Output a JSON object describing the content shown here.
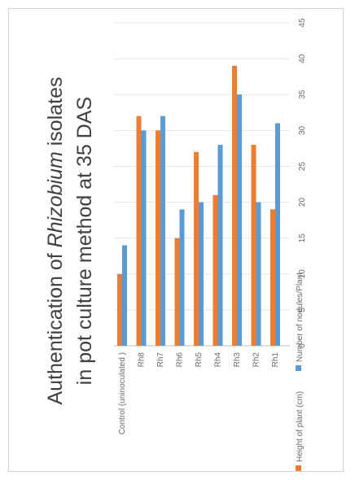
{
  "chart_data": {
    "type": "bar",
    "orientation": "horizontal",
    "rotation": "image rotated 90° counter-clockwise",
    "title": {
      "prefix": "Authentication of ",
      "italic": "Rhizobium",
      "suffix": " isolates",
      "line2": "in pot culture method at 35 DAS"
    },
    "categories": [
      "Control (uninoculated )",
      "Rh8",
      "Rh7",
      "Rh6",
      "Rh5",
      "Rh4",
      "Rh3",
      "Rh2",
      "Rh1"
    ],
    "series": [
      {
        "name": "Height of plant (cm)",
        "color": "#ED7D31",
        "values": [
          10,
          32,
          30,
          15,
          27,
          21,
          39,
          28,
          19
        ]
      },
      {
        "name": "Number of nodules/Plant",
        "color": "#5B9BD5",
        "values": [
          14,
          30,
          32,
          19,
          20,
          28,
          35,
          20,
          31
        ]
      }
    ],
    "value_axis": {
      "min": 0,
      "max": 45,
      "step": 5,
      "ticks": [
        "0",
        "5",
        "10",
        "15",
        "20",
        "25",
        "30",
        "35",
        "40",
        "45"
      ]
    },
    "grid": true,
    "legend_position": "bottom"
  }
}
